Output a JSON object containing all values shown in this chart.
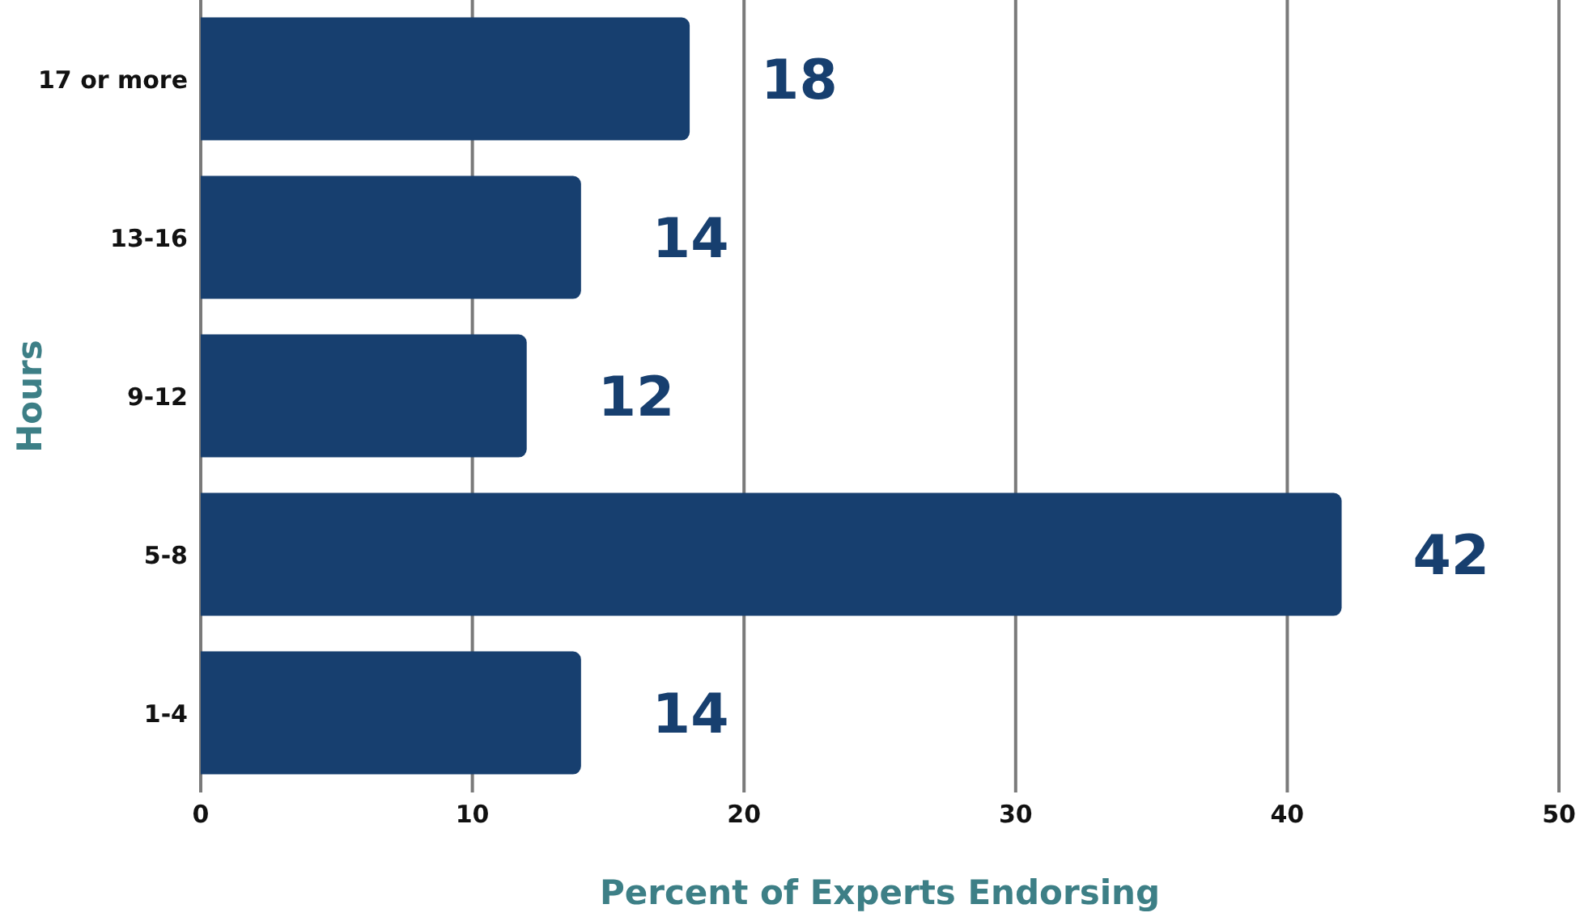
{
  "chart_data": {
    "type": "bar",
    "orientation": "horizontal",
    "xlabel": "Percent of Experts Endorsing",
    "ylabel": "Hours",
    "categories": [
      "17 or more",
      "13-16",
      "9-12",
      "5-8",
      "1-4"
    ],
    "values": [
      18,
      14,
      12,
      42,
      14
    ],
    "color": "#173f6f",
    "xlim": [
      0,
      50
    ],
    "xticks": [
      0,
      10,
      20,
      30,
      40,
      50
    ],
    "grid": "x",
    "data_labels": true
  }
}
